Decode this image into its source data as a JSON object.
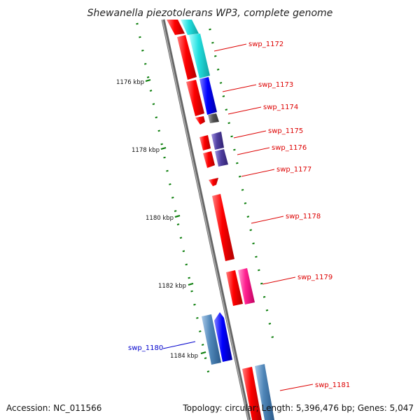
{
  "title": "Shewanella piezotolerans WP3, complete genome",
  "accession": "Accession: NC_011566",
  "summary": "Topology: circular; Length: 5,396,476 bp; Genes: 5,047",
  "kbp_ticks": [
    "1176 kbp",
    "1178 kbp",
    "1180 kbp",
    "1182 kbp",
    "1184 kbp"
  ],
  "genes": [
    {
      "label": "swp_1172",
      "color": "#dd0000"
    },
    {
      "label": "swp_1173",
      "color": "#dd0000"
    },
    {
      "label": "swp_1174",
      "color": "#dd0000"
    },
    {
      "label": "swp_1175",
      "color": "#dd0000"
    },
    {
      "label": "swp_1176",
      "color": "#dd0000"
    },
    {
      "label": "swp_1177",
      "color": "#dd0000"
    },
    {
      "label": "swp_1178",
      "color": "#dd0000"
    },
    {
      "label": "swp_1179",
      "color": "#dd0000"
    },
    {
      "label": "swp_1180",
      "color": "#0000cc"
    },
    {
      "label": "swp_1181",
      "color": "#dd0000"
    }
  ],
  "colors": {
    "backbone": "#8a8a8a",
    "forward_gene": "#ff0000",
    "reverse_gene": "#0000ff",
    "cyan_track": "#33e6e6",
    "blue_track": "#1a1aff",
    "purple_track": "#5a4aa0",
    "gray_track": "#555555",
    "pink_track": "#ff2a9a",
    "steel_track": "#4f86b8",
    "tick_green": "#0a7d0a"
  }
}
